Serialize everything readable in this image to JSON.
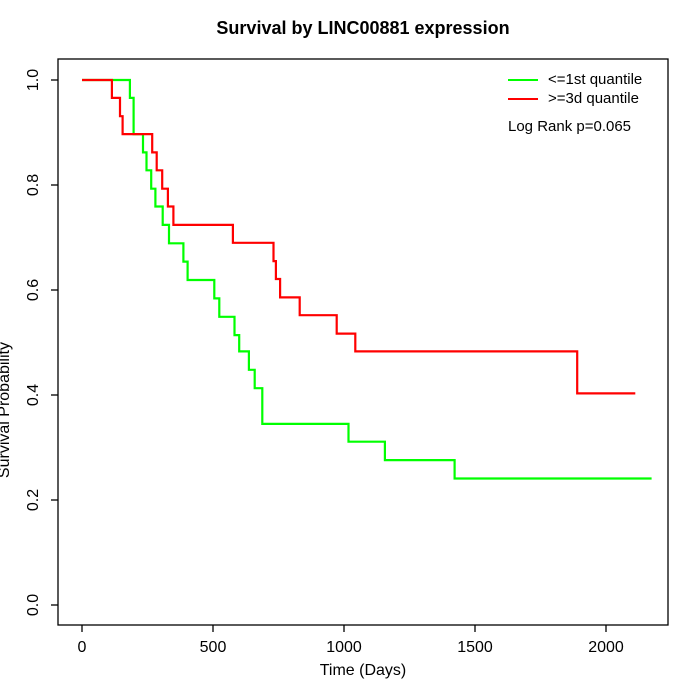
{
  "chart_data": {
    "type": "line",
    "subtype": "kaplan-meier-step",
    "title": "Survival by LINC00881 expression",
    "xlabel": "Time (Days)",
    "ylabel": "Survival Probability",
    "xlim": [
      0,
      2250
    ],
    "ylim": [
      0.0,
      1.0
    ],
    "xticks": [
      "0",
      "500",
      "1000",
      "1500",
      "2000"
    ],
    "yticks": [
      "0.0",
      "0.2",
      "0.4",
      "0.6",
      "0.8",
      "1.0"
    ],
    "grid": false,
    "legend_position": "top-right-inside",
    "annotation": "Log Rank p=0.065",
    "series": [
      {
        "name": "<=1st quantile",
        "color": "#00FF00",
        "points": [
          [
            0,
            1.0
          ],
          [
            183,
            0.966
          ],
          [
            197,
            0.897
          ],
          [
            233,
            0.862
          ],
          [
            246,
            0.828
          ],
          [
            264,
            0.793
          ],
          [
            280,
            0.759
          ],
          [
            308,
            0.724
          ],
          [
            332,
            0.689
          ],
          [
            387,
            0.654
          ],
          [
            403,
            0.619
          ],
          [
            505,
            0.584
          ],
          [
            524,
            0.549
          ],
          [
            582,
            0.514
          ],
          [
            600,
            0.483
          ],
          [
            637,
            0.448
          ],
          [
            659,
            0.413
          ],
          [
            688,
            0.345
          ],
          [
            1017,
            0.311
          ],
          [
            1156,
            0.276
          ],
          [
            1422,
            0.241
          ],
          [
            2174,
            0.241
          ]
        ]
      },
      {
        "name": ">=3d quantile",
        "color": "#FF0000",
        "points": [
          [
            0,
            1.0
          ],
          [
            114,
            0.966
          ],
          [
            145,
            0.931
          ],
          [
            155,
            0.897
          ],
          [
            268,
            0.862
          ],
          [
            285,
            0.828
          ],
          [
            306,
            0.793
          ],
          [
            328,
            0.759
          ],
          [
            349,
            0.724
          ],
          [
            576,
            0.69
          ],
          [
            731,
            0.655
          ],
          [
            740,
            0.621
          ],
          [
            756,
            0.586
          ],
          [
            831,
            0.552
          ],
          [
            972,
            0.517
          ],
          [
            1043,
            0.483
          ],
          [
            1890,
            0.403
          ],
          [
            2112,
            0.403
          ]
        ]
      }
    ]
  },
  "colors": {
    "background": "#FFFFFF",
    "axis": "#000000",
    "text": "#000000"
  }
}
